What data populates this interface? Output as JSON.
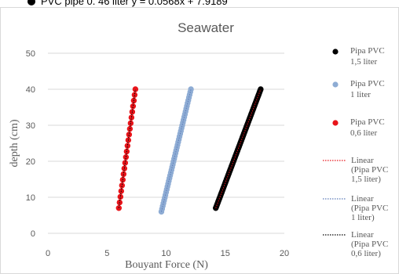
{
  "top_caption": "PVC pipe 0. 46 liter   y = 0.0568x + 7.9189",
  "chart_data": {
    "type": "scatter",
    "title": "Seawater",
    "xlabel": "Bouyant Force (N)",
    "ylabel": "depth (cm)",
    "xlim": [
      0,
      20
    ],
    "ylim": [
      0,
      50
    ],
    "xticks": [
      0,
      5,
      10,
      15,
      20
    ],
    "yticks": [
      0,
      10,
      20,
      30,
      40,
      50
    ],
    "grid": "horizontal",
    "legend_position": "right",
    "series": [
      {
        "name": "Pipa PVC 1,5 liter",
        "color": "#000000",
        "x_start": 14.2,
        "y_start": 7,
        "x_end": 18.0,
        "y_end": 40,
        "points": 90
      },
      {
        "name": "Pipa PVC 1 liter",
        "color": "#8eacd4",
        "x_start": 9.6,
        "y_start": 6,
        "x_end": 12.1,
        "y_end": 40,
        "points": 45
      },
      {
        "name": "Pipa PVC 0,6 liter",
        "color": "#e8141a",
        "x_start": 6.0,
        "y_start": 7,
        "x_end": 7.4,
        "y_end": 40,
        "points": 22
      }
    ],
    "trendlines": [
      {
        "label": "Linear (Pipa PVC 1,5 liter)",
        "color": "#e8141a",
        "style": "dotted"
      },
      {
        "label": "Linear (Pipa PVC 1 liter)",
        "color": "#5b7bb8",
        "style": "dotted"
      },
      {
        "label": "Linear (Pipa PVC 0,6 liter)",
        "color": "#000000",
        "style": "dotted"
      }
    ]
  }
}
